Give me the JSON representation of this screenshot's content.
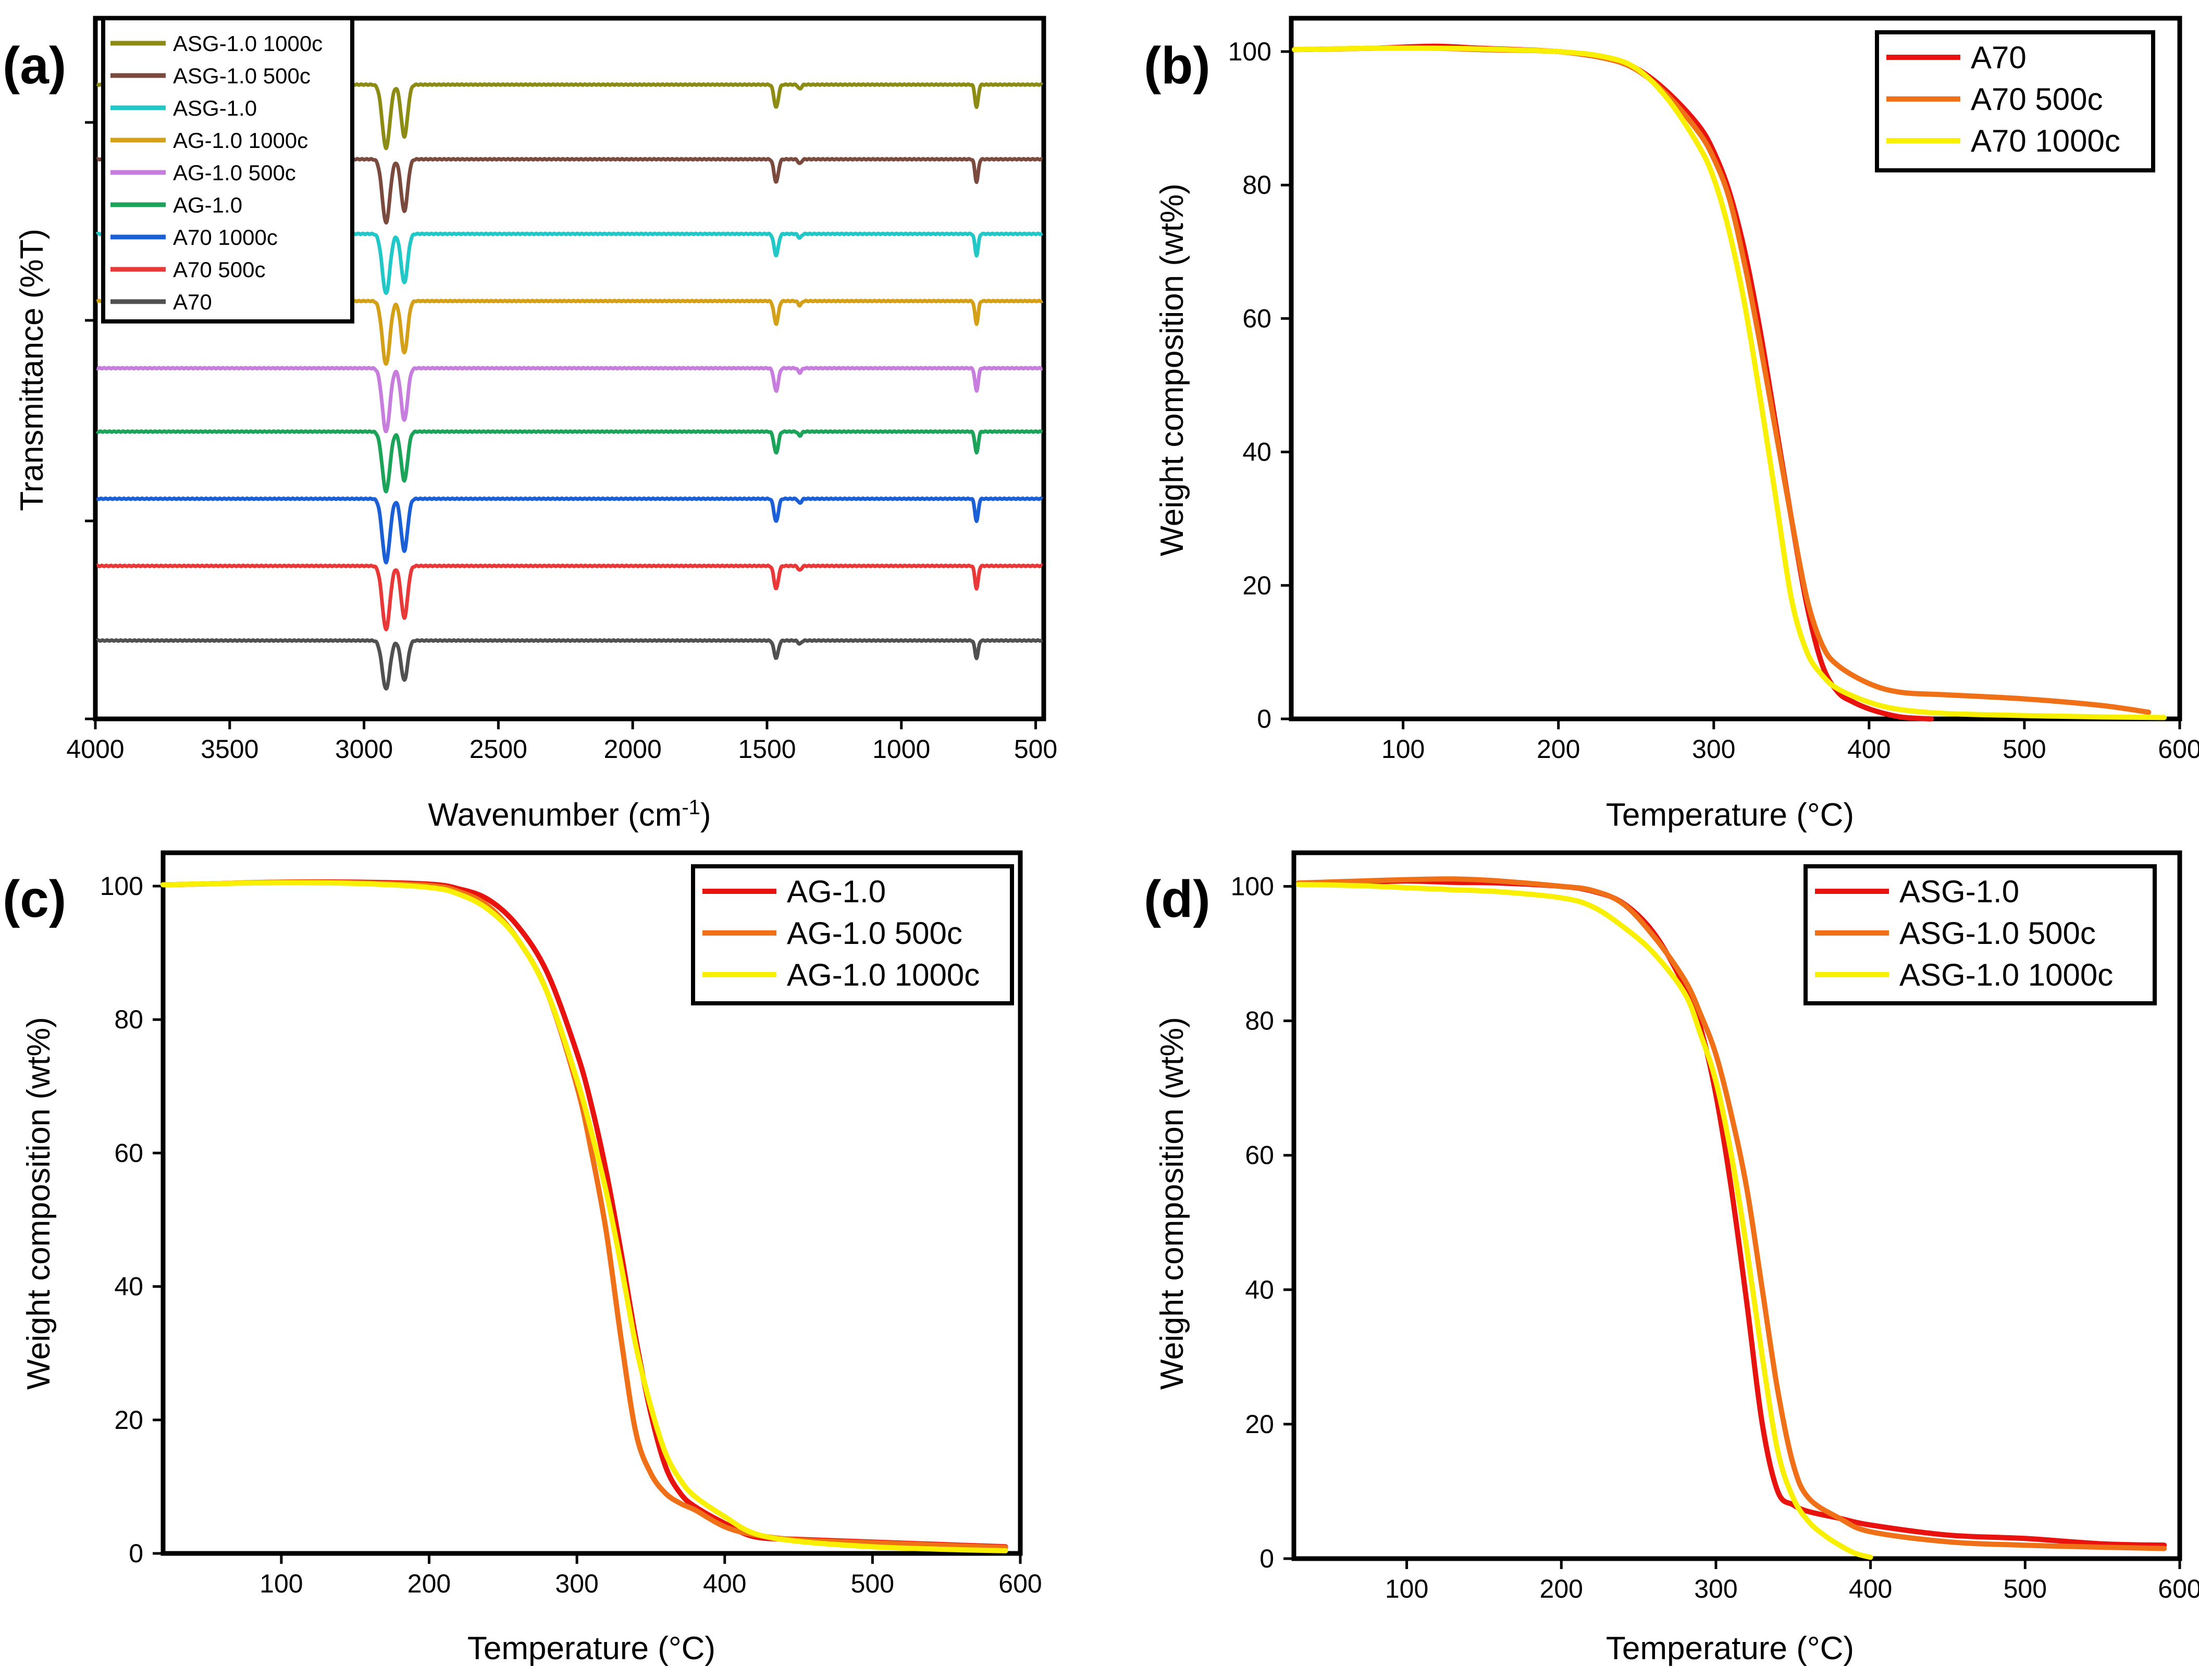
{
  "chart_data": [
    {
      "panel": "(a)",
      "type": "line",
      "xlabel": "Wavenumber (cm",
      "xlabel_sup": "-1",
      "xlabel_tail": ")",
      "ylabel": "Transmittance (%T)",
      "xlim": [
        4000,
        470
      ],
      "x_ticks": [
        4000,
        3500,
        3000,
        2500,
        2000,
        1500,
        1000,
        500
      ],
      "series": [
        {
          "name": "ASG-1.0 1000c",
          "color": "#8c8c14",
          "baseline": 8.5,
          "depth": 0.85
        },
        {
          "name": "ASG-1.0 500c",
          "color": "#7b4a3e",
          "baseline": 7.5,
          "depth": 0.85
        },
        {
          "name": "ASG-1.0",
          "color": "#22c8c8",
          "baseline": 6.5,
          "depth": 0.8
        },
        {
          "name": "AG-1.0 1000c",
          "color": "#d4a017",
          "baseline": 5.6,
          "depth": 0.85
        },
        {
          "name": "AG-1.0 500c",
          "color": "#c77dde",
          "baseline": 4.7,
          "depth": 0.85
        },
        {
          "name": "AG-1.0",
          "color": "#1ca35a",
          "baseline": 3.85,
          "depth": 0.8
        },
        {
          "name": "A70 1000c",
          "color": "#1a5fd6",
          "baseline": 2.95,
          "depth": 0.85
        },
        {
          "name": "A70 500c",
          "color": "#e83838",
          "baseline": 2.05,
          "depth": 0.85
        },
        {
          "name": "A70",
          "color": "#505050",
          "baseline": 1.05,
          "depth": 0.65
        }
      ],
      "peaks": [
        {
          "center": 2918,
          "width": 14,
          "rel_depth": 1.0
        },
        {
          "center": 2850,
          "width": 12,
          "rel_depth": 0.82
        },
        {
          "center": 1466,
          "width": 8,
          "rel_depth": 0.36
        },
        {
          "center": 1378,
          "width": 6,
          "rel_depth": 0.07
        },
        {
          "center": 720,
          "width": 6,
          "rel_depth": 0.36
        }
      ]
    },
    {
      "panel": "(b)",
      "type": "line",
      "xlabel": "Temperature (°C)",
      "ylabel": "Weight composition (wt%)",
      "xlim": [
        28,
        600
      ],
      "ylim": [
        0,
        105
      ],
      "x_ticks": [
        100,
        200,
        300,
        400,
        500,
        600
      ],
      "y_ticks": [
        0,
        20,
        40,
        60,
        80,
        100
      ],
      "legend_position": "top-right",
      "series": [
        {
          "name": "A70",
          "color": "#e8120e",
          "x": [
            30,
            80,
            120,
            150,
            200,
            230,
            250,
            270,
            290,
            300,
            310,
            320,
            330,
            340,
            350,
            360,
            370,
            380,
            390,
            400,
            410,
            420,
            430,
            440
          ],
          "y": [
            100.3,
            100.5,
            100.8,
            100.5,
            100,
            99,
            97.5,
            94,
            89,
            85,
            79,
            70,
            58,
            44,
            30,
            17,
            8,
            4,
            2.5,
            1.5,
            0.8,
            0.3,
            0.1,
            0
          ]
        },
        {
          "name": "A70 500c",
          "color": "#f07018",
          "x": [
            30,
            80,
            120,
            150,
            200,
            230,
            250,
            270,
            290,
            300,
            310,
            320,
            330,
            340,
            350,
            360,
            370,
            380,
            400,
            420,
            450,
            500,
            550,
            580
          ],
          "y": [
            100.3,
            100.5,
            100.5,
            100.3,
            100,
            99,
            97.3,
            93.5,
            88,
            84,
            78,
            68,
            56,
            43,
            30,
            18,
            11,
            8,
            5.3,
            4,
            3.6,
            3,
            2,
            1
          ]
        },
        {
          "name": "A70 1000c",
          "color": "#f8f000",
          "x": [
            30,
            80,
            120,
            150,
            200,
            230,
            250,
            270,
            290,
            300,
            310,
            320,
            330,
            340,
            350,
            360,
            370,
            380,
            400,
            420,
            450,
            500,
            550,
            590
          ],
          "y": [
            100.3,
            100.5,
            100.5,
            100.4,
            100,
            99.2,
            97.5,
            93,
            86,
            81,
            73,
            62,
            48,
            33,
            18,
            10,
            6.5,
            4.5,
            2.5,
            1.4,
            0.8,
            0.5,
            0.3,
            0.2
          ]
        }
      ]
    },
    {
      "panel": "(c)",
      "type": "line",
      "xlabel": "Temperature (°C)",
      "ylabel": "Weight composition (wt%)",
      "xlim": [
        20,
        600
      ],
      "ylim": [
        0,
        105
      ],
      "x_ticks": [
        100,
        200,
        300,
        400,
        500,
        600
      ],
      "y_ticks": [
        0,
        20,
        40,
        60,
        80,
        100
      ],
      "legend_position": "top-right",
      "series": [
        {
          "name": "AG-1.0",
          "color": "#e8120e",
          "x": [
            20,
            60,
            100,
            150,
            200,
            220,
            240,
            260,
            280,
            300,
            310,
            320,
            330,
            340,
            350,
            360,
            370,
            380,
            400,
            420,
            450,
            500,
            550,
            590
          ],
          "y": [
            100.2,
            100.4,
            100.6,
            100.6,
            100.3,
            99.6,
            98,
            94,
            87,
            75,
            67,
            57,
            45,
            32,
            21,
            13,
            9,
            7,
            4.5,
            2.5,
            2.1,
            1.7,
            1.3,
            1
          ]
        },
        {
          "name": "AG-1.0 500c",
          "color": "#f07018",
          "x": [
            20,
            60,
            100,
            150,
            200,
            220,
            240,
            260,
            280,
            300,
            310,
            320,
            330,
            340,
            350,
            360,
            370,
            380,
            400,
            420,
            450,
            500,
            550,
            590
          ],
          "y": [
            100.2,
            100.4,
            100.6,
            100.5,
            100.1,
            99.2,
            97,
            92,
            84,
            70,
            60,
            48,
            32,
            18,
            12,
            9,
            7.5,
            6.5,
            4,
            2.8,
            2,
            1.6,
            1.2,
            0.9
          ]
        },
        {
          "name": "AG-1.0 1000c",
          "color": "#f8f000",
          "x": [
            20,
            60,
            100,
            150,
            200,
            220,
            240,
            260,
            280,
            300,
            310,
            320,
            330,
            340,
            350,
            360,
            370,
            380,
            400,
            420,
            450,
            500,
            550,
            590
          ],
          "y": [
            100.2,
            100.4,
            100.5,
            100.4,
            99.8,
            98.8,
            96.5,
            92,
            84,
            71,
            63,
            54,
            43,
            31,
            22,
            15,
            11,
            8.5,
            5.5,
            3,
            1.8,
            1,
            0.6,
            0.4
          ]
        }
      ]
    },
    {
      "panel": "(d)",
      "type": "line",
      "xlabel": "Temperature (°C)",
      "ylabel": "Weight composition (wt%)",
      "xlim": [
        27,
        600
      ],
      "ylim": [
        0,
        105
      ],
      "x_ticks": [
        100,
        200,
        300,
        400,
        500,
        600
      ],
      "y_ticks": [
        0,
        20,
        40,
        60,
        80,
        100
      ],
      "legend_position": "top-right",
      "series": [
        {
          "name": "ASG-1.0",
          "color": "#e8120e",
          "x": [
            30,
            70,
            100,
            130,
            160,
            200,
            220,
            240,
            260,
            280,
            290,
            300,
            310,
            320,
            330,
            340,
            350,
            360,
            380,
            400,
            450,
            500,
            550,
            590
          ],
          "y": [
            100.5,
            100.6,
            100.8,
            100.6,
            100.5,
            100,
            99.3,
            97.5,
            93,
            85,
            79,
            69,
            55,
            38,
            20,
            10,
            8,
            7,
            6,
            5,
            3.5,
            3,
            2.2,
            2
          ]
        },
        {
          "name": "ASG-1.0 500c",
          "color": "#f07018",
          "x": [
            30,
            70,
            100,
            130,
            160,
            200,
            220,
            240,
            260,
            280,
            290,
            300,
            310,
            320,
            330,
            340,
            350,
            360,
            380,
            400,
            450,
            500,
            550,
            590
          ],
          "y": [
            100.5,
            100.8,
            101,
            101.1,
            100.8,
            100,
            99.4,
            97.4,
            92.5,
            86,
            81,
            75,
            66,
            55,
            40,
            25,
            14,
            9,
            6,
            4,
            2.5,
            2,
            1.7,
            1.5
          ]
        },
        {
          "name": "ASG-1.0 1000c",
          "color": "#f8f000",
          "x": [
            30,
            70,
            100,
            130,
            160,
            200,
            220,
            240,
            260,
            280,
            290,
            300,
            310,
            320,
            330,
            340,
            350,
            360,
            370,
            380,
            390,
            400
          ],
          "y": [
            100.3,
            100.1,
            99.8,
            99.5,
            99.2,
            98.3,
            97,
            94,
            90,
            84,
            78,
            71,
            60,
            46,
            30,
            16,
            9,
            5.5,
            3.5,
            2,
            0.8,
            0.2
          ]
        }
      ]
    }
  ]
}
